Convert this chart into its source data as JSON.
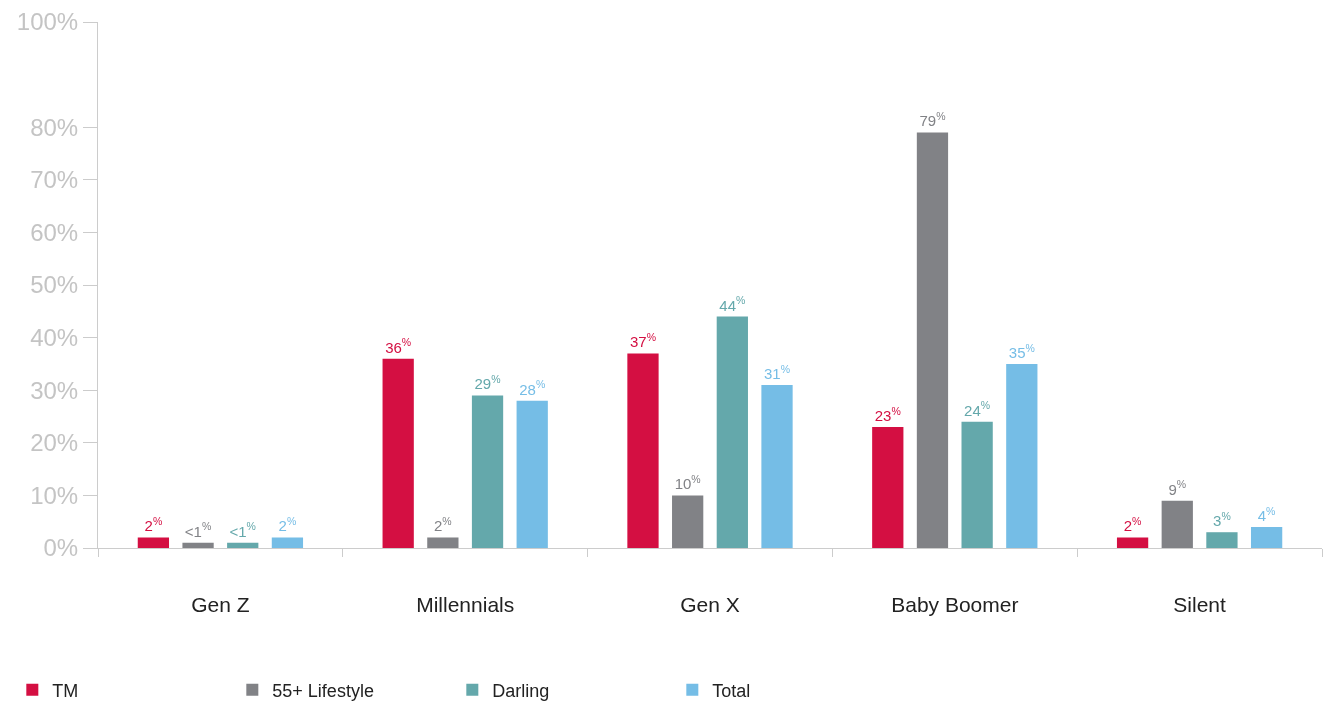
{
  "chart_data": {
    "type": "bar",
    "categories": [
      "Gen Z",
      "Millennials",
      "Gen X",
      "Baby Boomer",
      "Silent"
    ],
    "series": [
      {
        "name": "TM",
        "color": "#d40f42",
        "values": [
          2,
          36,
          37,
          23,
          2
        ],
        "value_labels": [
          "2$^{%}$",
          "36$^{%}$",
          "37$^{%}$",
          "23$^{%}$",
          "2$^{%}$"
        ]
      },
      {
        "name": "55+ Lifestyle",
        "color": "#818286",
        "values": [
          1,
          2,
          10,
          79,
          9
        ],
        "value_labels": [
          "<1$^{%}$",
          "2$^{%}$",
          "10$^{%}$",
          "79$^{%}$",
          "9$^{%}$"
        ]
      },
      {
        "name": "Darling",
        "color": "#64a8ab",
        "values": [
          1,
          29,
          44,
          24,
          3
        ],
        "value_labels": [
          "<1$^{%}$",
          "29$^{%}$",
          "44$^{%}$",
          "24$^{%}$",
          "3$^{%}$"
        ]
      },
      {
        "name": "Total",
        "color": "#75bde6",
        "values": [
          2,
          28,
          31,
          35,
          4
        ],
        "value_labels": [
          "2$^{%}$",
          "28$^{%}$",
          "31$^{%}$",
          "35$^{%}$",
          "4$^{%}$"
        ]
      }
    ],
    "ylim": [
      0,
      100
    ],
    "yticks": [
      {
        "value": 0,
        "label": "0%"
      },
      {
        "value": 10,
        "label": "10%"
      },
      {
        "value": 20,
        "label": "20%"
      },
      {
        "value": 30,
        "label": "30%"
      },
      {
        "value": 40,
        "label": "40%"
      },
      {
        "value": 50,
        "label": "50%"
      },
      {
        "value": 60,
        "label": "60%"
      },
      {
        "value": 70,
        "label": "70%"
      },
      {
        "value": 80,
        "label": "80%"
      },
      {
        "value": 100,
        "label": "100%"
      }
    ],
    "grid": false,
    "legend": "bottom left"
  }
}
